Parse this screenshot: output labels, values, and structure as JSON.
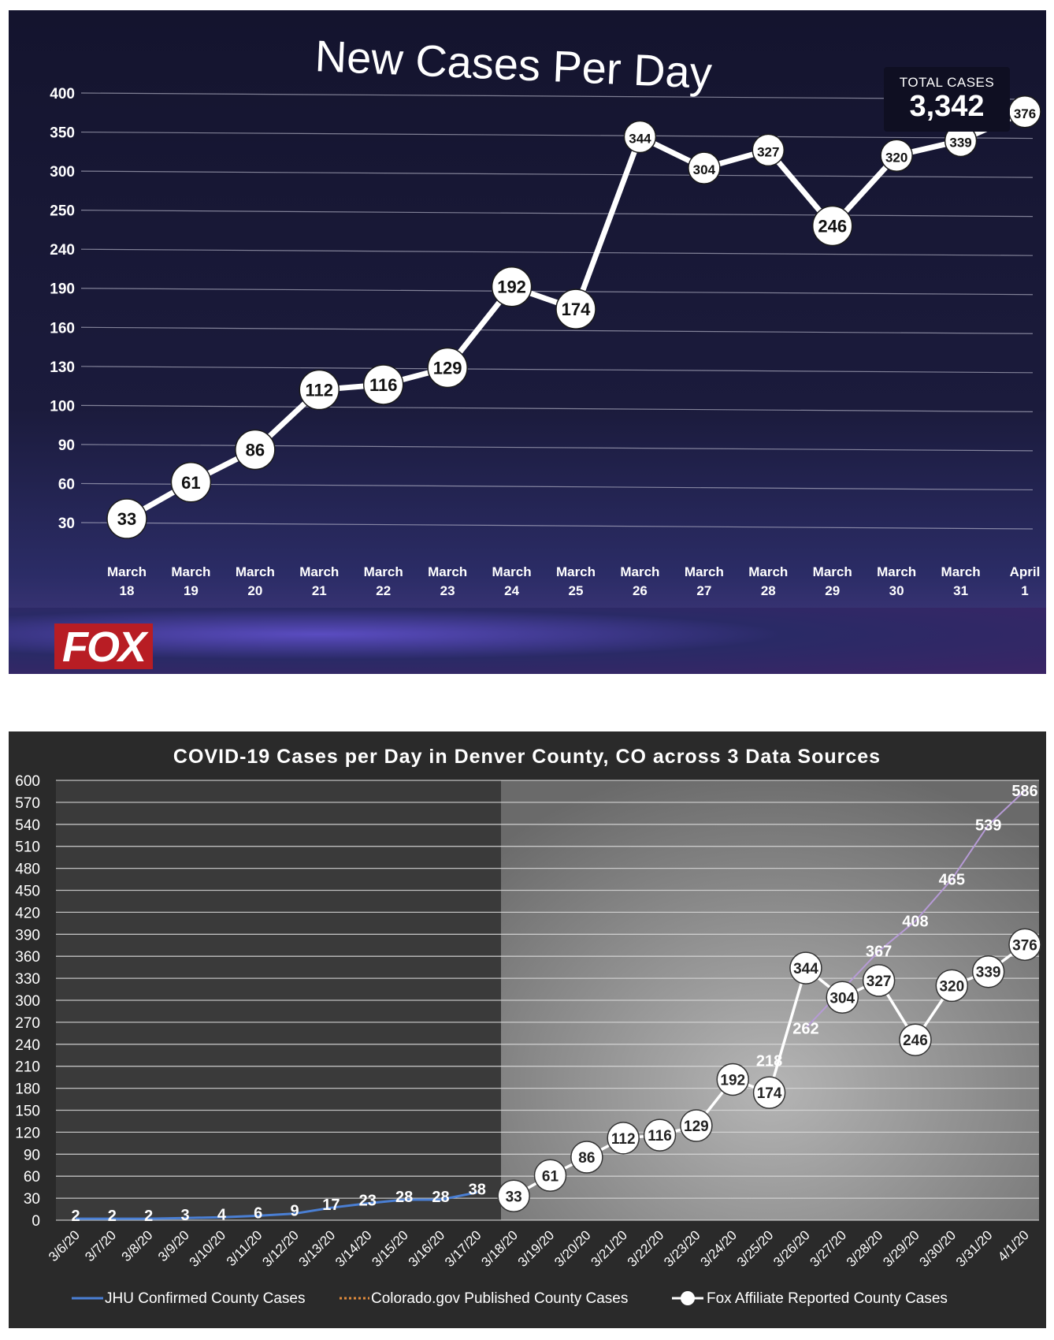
{
  "chart_data": [
    {
      "type": "line",
      "title": "New Cases Per Day",
      "total_label": "TOTAL CASES",
      "total_value": "3,342",
      "logo_text": "FOX",
      "y_tick_labels": [
        "400",
        "350",
        "300",
        "250",
        "240",
        "190",
        "160",
        "130",
        "100",
        "90",
        "60",
        "30"
      ],
      "categories": [
        [
          "March",
          "18"
        ],
        [
          "March",
          "19"
        ],
        [
          "March",
          "20"
        ],
        [
          "March",
          "21"
        ],
        [
          "March",
          "22"
        ],
        [
          "March",
          "23"
        ],
        [
          "March",
          "24"
        ],
        [
          "March",
          "25"
        ],
        [
          "March",
          "26"
        ],
        [
          "March",
          "27"
        ],
        [
          "March",
          "28"
        ],
        [
          "March",
          "29"
        ],
        [
          "March",
          "30"
        ],
        [
          "March",
          "31"
        ],
        [
          "April",
          "1"
        ]
      ],
      "series": [
        {
          "values": [
            33,
            61,
            86,
            112,
            116,
            129,
            192,
            174,
            344,
            304,
            327,
            246,
            320,
            339,
            376
          ],
          "color": "#ffffff"
        }
      ]
    },
    {
      "type": "line",
      "title": "COVID-19 Cases per Day in Denver County, CO across 3 Data Sources",
      "ylim": [
        0,
        600
      ],
      "y_ticks": [
        0,
        30,
        60,
        90,
        120,
        150,
        180,
        210,
        240,
        270,
        300,
        330,
        360,
        390,
        420,
        450,
        480,
        510,
        540,
        570,
        600
      ],
      "categories": [
        "3/6/20",
        "3/7/20",
        "3/8/20",
        "3/9/20",
        "3/10/20",
        "3/11/20",
        "3/12/20",
        "3/13/20",
        "3/14/20",
        "3/15/20",
        "3/16/20",
        "3/17/20",
        "3/18/20",
        "3/19/20",
        "3/20/20",
        "3/21/20",
        "3/22/20",
        "3/23/20",
        "3/24/20",
        "3/25/20",
        "3/26/20",
        "3/27/20",
        "3/28/20",
        "3/29/20",
        "3/30/20",
        "3/31/20",
        "4/1/20"
      ],
      "series": [
        {
          "name": "JHU Confirmed County Cases",
          "color": "#4a7fd4",
          "values": [
            2,
            2,
            2,
            3,
            4,
            6,
            9,
            17,
            23,
            28,
            28,
            38,
            null,
            null,
            null,
            null,
            null,
            null,
            null,
            null,
            null,
            null,
            null,
            null,
            null,
            null,
            null
          ],
          "labels": [
            "2",
            "2",
            "2",
            "3",
            "4",
            "6",
            "9",
            "17",
            "23",
            "28",
            "28",
            "38"
          ]
        },
        {
          "name": "Colorado.gov Published County Cases",
          "color": "#e08a3c",
          "values": [
            null,
            null,
            null,
            null,
            null,
            null,
            null,
            null,
            null,
            null,
            null,
            null,
            null,
            null,
            null,
            null,
            null,
            null,
            null,
            null,
            null,
            null,
            null,
            null,
            null,
            null,
            null
          ],
          "labels": []
        },
        {
          "name": "Fox Affiliate Reported County Cases",
          "color": "#ffffff",
          "values": [
            null,
            null,
            null,
            null,
            null,
            null,
            null,
            null,
            null,
            null,
            null,
            null,
            33,
            61,
            86,
            112,
            116,
            129,
            192,
            174,
            344,
            304,
            327,
            246,
            320,
            339,
            376
          ]
        }
      ],
      "extra_labels": [
        {
          "x_index": 19,
          "value": 218,
          "text": "218"
        },
        {
          "x_index": 20,
          "value": 262,
          "text": "262"
        },
        {
          "x_index": 22,
          "value": 367,
          "text": "367"
        },
        {
          "x_index": 23,
          "value": 408,
          "text": "408"
        },
        {
          "x_index": 24,
          "value": 465,
          "text": "465"
        },
        {
          "x_index": 25,
          "value": 539,
          "text": "539"
        },
        {
          "x_index": 26,
          "value": 586,
          "text": "586"
        }
      ],
      "extra_line_values": [
        null,
        null,
        null,
        null,
        null,
        null,
        null,
        null,
        null,
        null,
        null,
        null,
        null,
        null,
        null,
        null,
        null,
        null,
        null,
        null,
        262,
        null,
        367,
        408,
        465,
        539,
        586
      ]
    }
  ]
}
